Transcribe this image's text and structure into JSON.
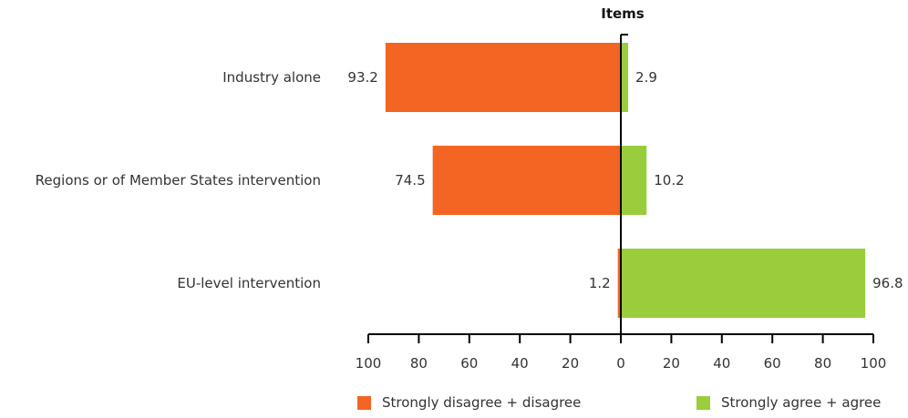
{
  "chart_data": {
    "type": "bar",
    "orientation": "horizontal-diverging",
    "axis_title": "Items",
    "categories": [
      "Industry alone",
      "Regions or of Member States intervention",
      "EU-level intervention"
    ],
    "series": [
      {
        "name": "Strongly disagree + disagree",
        "values": [
          93.2,
          74.5,
          1.2
        ],
        "color": "#f26522",
        "direction": "left"
      },
      {
        "name": "Strongly agree + agree",
        "values": [
          2.9,
          10.2,
          96.8
        ],
        "color": "#9acd3c",
        "direction": "right"
      }
    ],
    "value_labels": {
      "left": [
        "93.2",
        "74.5",
        "1.2"
      ],
      "right": [
        "2.9",
        "10.2",
        "96.8"
      ]
    },
    "x_ticks": [
      "100",
      "80",
      "60",
      "40",
      "20",
      "0",
      "20",
      "40",
      "60",
      "80",
      "100"
    ],
    "xlim": [
      -100,
      100
    ],
    "grid": false,
    "legend_position": "bottom"
  }
}
